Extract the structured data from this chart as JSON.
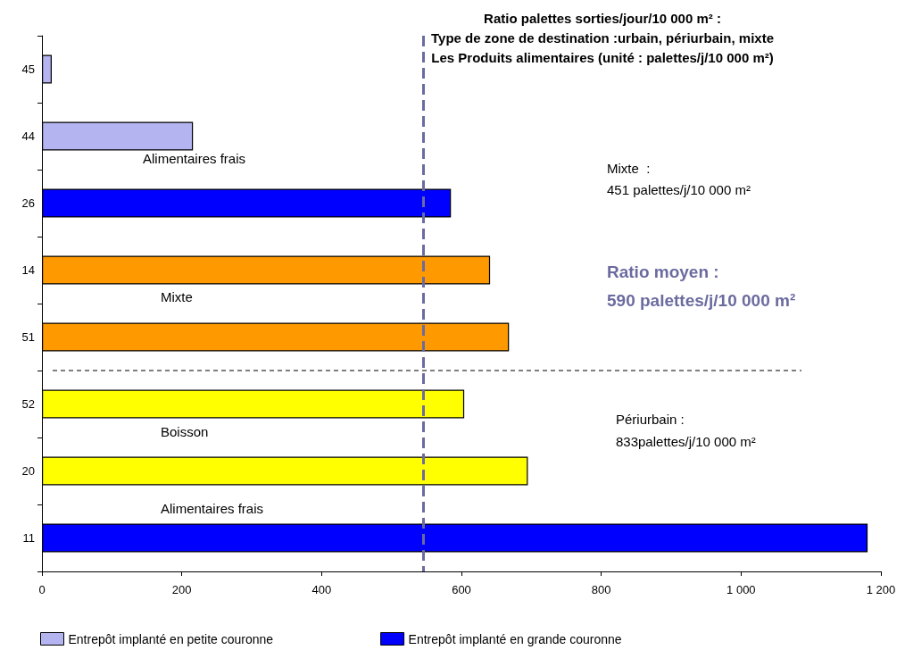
{
  "chart_data": {
    "type": "bar",
    "orientation": "horizontal",
    "title": "Ratio palettes sorties/jour/10 000 m² :\nType de zone de destination :urbain, périurbain, mixte\nLes Produits alimentaires (unité : palettes/j/10 000 m²)",
    "categories": [
      "45",
      "44",
      "26",
      "14",
      "51",
      "52",
      "20",
      "11"
    ],
    "series": [
      {
        "name": "Entrepôt implanté en petite couronne",
        "color": "#b4b4f0",
        "values": [
          14,
          216,
          null,
          null,
          null,
          null,
          null,
          null
        ]
      },
      {
        "name": "Entrepôt implanté en grande couronne",
        "color": "#0000ff",
        "colors": [
          "#0000ff",
          "#0000ff",
          "#0000ff",
          "#ff9900",
          "#ff9900",
          "#ffff00",
          "#ffff00",
          "#0000ff"
        ],
        "values": [
          null,
          null,
          585,
          641,
          668,
          604,
          695,
          1181
        ]
      }
    ],
    "xlim": [
      0,
      1200
    ],
    "xticks": [
      0,
      200,
      400,
      600,
      800,
      {
        "value": 1000,
        "label": "1 000"
      },
      {
        "value": 1200,
        "label": "1 200"
      }
    ],
    "grid": false,
    "legend": "bottom",
    "ref_lines": [
      {
        "axis": "x",
        "value": 545,
        "label": null,
        "color": "#6b6ba0",
        "line_style": "dashed"
      }
    ],
    "annotations": [
      "Alimentaires frais",
      "Mixte",
      "Boisson",
      "Alimentaires frais",
      "Mixte  :\n451 palettes/j/10 000 m²",
      "Ratio moyen :\n590 palettes/j/10 000 m²",
      "Périurbain :\n833palettes/j/10 000 m²"
    ]
  }
}
